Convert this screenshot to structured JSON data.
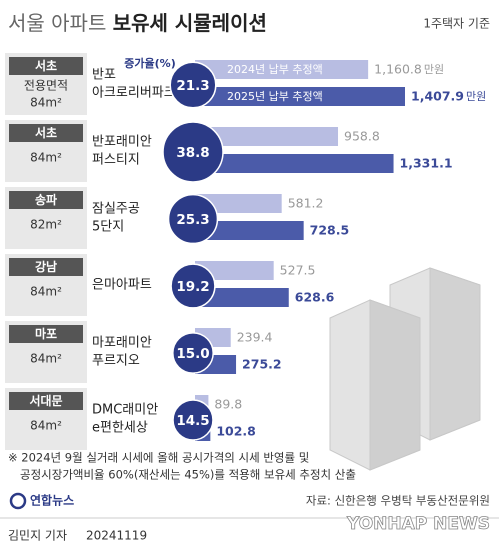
{
  "chart_data": {
    "type": "paired-bar",
    "title_light": "서울 아파트",
    "title_bold": "보유세 시뮬레이션",
    "subtitle": "1주택자 기준",
    "area_label": "전용면적",
    "rate_label": "증가율(%)",
    "unit": "만원",
    "districts": [
      "서초",
      "서초",
      "송파",
      "강남",
      "마포",
      "서대문"
    ],
    "areas": [
      "84m²",
      "84m²",
      "82m²",
      "84m²",
      "84m²",
      "84m²"
    ],
    "categories": [
      [
        "반포",
        "아크로리버파크"
      ],
      [
        "반포래미안",
        "퍼스티지"
      ],
      [
        "잠실주공",
        "5단지"
      ],
      [
        "은마아파트"
      ],
      [
        "마포래미안",
        "푸르지오"
      ],
      [
        "DMC래미안",
        "e편한세상"
      ]
    ],
    "increase": {
      "values": [
        21.3,
        38.8,
        25.3,
        19.2,
        15.0,
        14.5
      ],
      "value_labels": [
        "21.3",
        "38.8",
        "25.3",
        "19.2",
        "15.0",
        "14.5"
      ],
      "color": "#2b3a86"
    },
    "series": [
      {
        "name": "2024년 납부 추정액",
        "color": "#b8bde2",
        "values": [
          1160.8,
          958.8,
          581.2,
          527.5,
          239.4,
          89.8
        ],
        "value_labels": [
          "1,160.8",
          "958.8",
          "581.2",
          "527.5",
          "239.4",
          "89.8"
        ]
      },
      {
        "name": "2025년 납부 추정액",
        "color": "#4b5ba9",
        "values": [
          1407.9,
          1331.1,
          728.5,
          628.6,
          275.2,
          102.8
        ],
        "value_labels": [
          "1,407.9",
          "1,331.1",
          "728.5",
          "628.6",
          "275.2",
          "102.8"
        ]
      }
    ],
    "footnote": [
      "※ 2024년 9월 실거래 시세에 올해 공시가격의 시세 반영률 및",
      "공정시장가액비율 60%(재산세는 45%)를 적용해 보유세 추정치 산출"
    ],
    "source": "자료: 신한은행 우병탁 부동산전문위원",
    "logo": "연합뉴스",
    "byline": "김민지 기자",
    "date": "20241119",
    "watermark": "YONHAP NEWS"
  }
}
